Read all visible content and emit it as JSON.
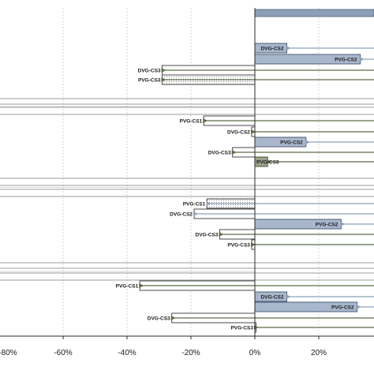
{
  "colors": {
    "pos_fill": "#a9b7cc",
    "pos_stroke": "#4d5f7a",
    "neg_fill": "#ffffff",
    "neg_stroke": "#4a4a4a",
    "sand_fill": "#9aa48c",
    "arrow_blue": "#8aa0bb",
    "arrow_green": "#5a6e48",
    "grid": "#d6d6d6",
    "axis": "#2a2a2a",
    "header_fill": "#8d9fb5"
  },
  "chart_data": {
    "type": "bar",
    "orientation": "horizontal",
    "title": "",
    "xlabel": "",
    "ylabel": "",
    "xlim": [
      -80,
      40
    ],
    "x_ticks": [
      -80,
      -60,
      -40,
      -20,
      0,
      20
    ],
    "x_tick_labels": [
      "-80%",
      "-60%",
      "-40%",
      "-20%",
      "0%",
      "20%"
    ],
    "grid": true,
    "legend": "none",
    "groups": [
      {
        "bars": [
          {
            "label": "DVG-CS2",
            "value": 10,
            "style": "pos",
            "arrow": "blue"
          },
          {
            "label": "PVG-CS2",
            "value": 33,
            "style": "pos",
            "arrow": "blue"
          },
          {
            "label": "DVG-CS3",
            "value": -29,
            "style": "neg",
            "arrow": "green"
          },
          {
            "label": "PVG-CS3",
            "value": -29,
            "style": "neg_dotted",
            "arrow": "green"
          }
        ]
      },
      {
        "bars": [
          {
            "label": "PVG-CS1",
            "value": -16,
            "style": "neg",
            "arrow": "green"
          },
          {
            "label": "DVG-CS2",
            "value": -1,
            "style": "neg",
            "arrow": "green"
          },
          {
            "label": "PVG-CS2",
            "value": 16,
            "style": "pos",
            "arrow": "blue"
          },
          {
            "label": "DVG-CS3",
            "value": -7,
            "style": "neg",
            "arrow": "green"
          },
          {
            "label": "PVG-CS3",
            "value": 4,
            "style": "sand",
            "arrow": "green"
          }
        ]
      },
      {
        "bars": [
          {
            "label": "PVG-CS1",
            "value": -15,
            "style": "neg_dotted",
            "arrow": "blue"
          },
          {
            "label": "DVG-CS2",
            "value": -19,
            "style": "neg",
            "arrow": "blue"
          },
          {
            "label": "PVG-CS2",
            "value": 27,
            "style": "pos",
            "arrow": "blue"
          },
          {
            "label": "DVG-CS3",
            "value": -11,
            "style": "neg",
            "arrow": "green"
          },
          {
            "label": "PVG-CS3",
            "value": -1,
            "style": "neg",
            "arrow": "green"
          }
        ]
      },
      {
        "bars": [
          {
            "label": "PVG-CS1",
            "value": -36,
            "style": "neg",
            "arrow": "green"
          },
          {
            "label": "DVG-CS2",
            "value": 10,
            "style": "pos",
            "arrow": "blue"
          },
          {
            "label": "PVG-CS2",
            "value": 32,
            "style": "pos",
            "arrow": "blue"
          },
          {
            "label": "DVG-CS3",
            "value": -26,
            "style": "neg",
            "arrow": "green"
          },
          {
            "label": "PVG-CS3",
            "value": 0,
            "style": "neg",
            "arrow": "green"
          }
        ]
      }
    ]
  }
}
